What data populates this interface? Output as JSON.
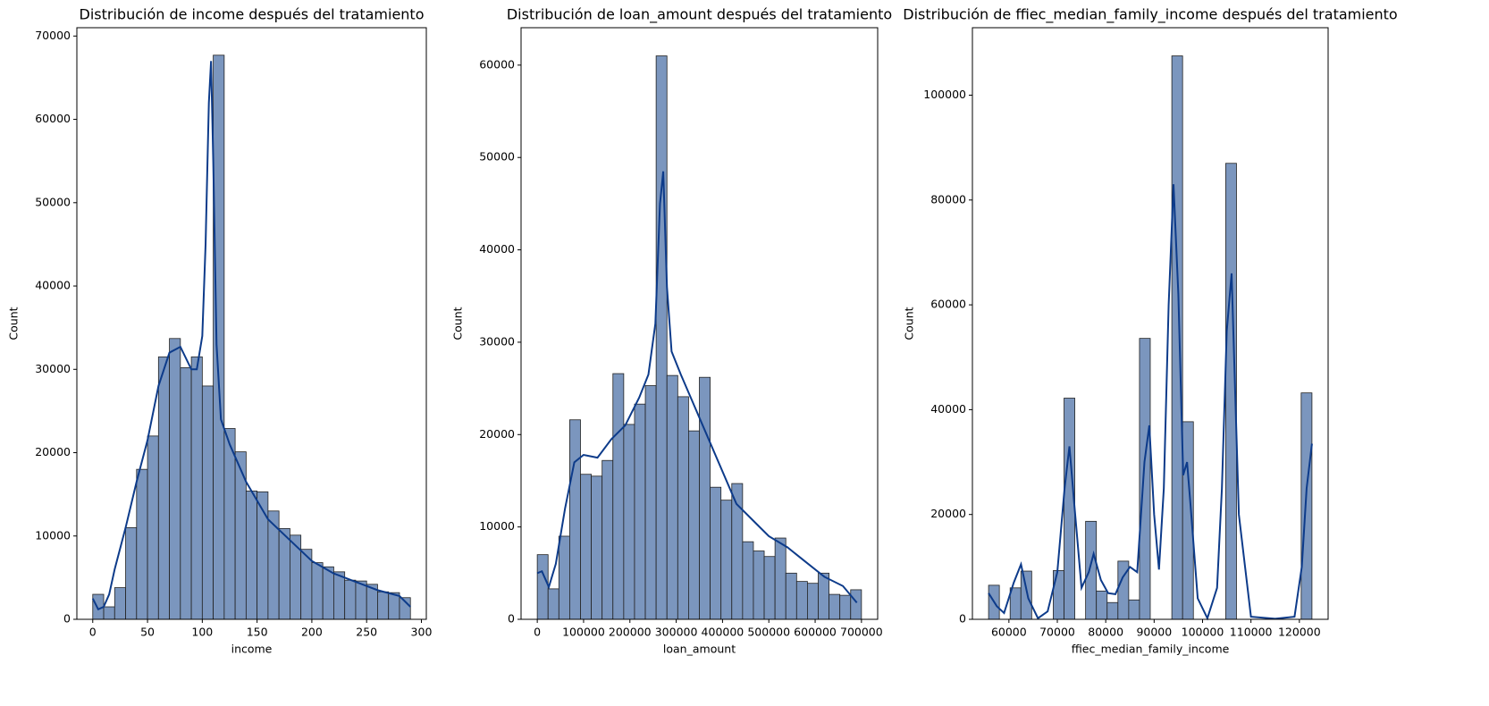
{
  "chart_data": [
    {
      "type": "histogram",
      "title": "Distribución de income después del tratamiento",
      "xlabel": "income",
      "ylabel": "Count",
      "bins": [
        0,
        10,
        20,
        30,
        40,
        50,
        60,
        70,
        80,
        90,
        100,
        110,
        120,
        130,
        140,
        150,
        160,
        170,
        180,
        190,
        200,
        210,
        220,
        230,
        240,
        250,
        260,
        270,
        280,
        290
      ],
      "values": [
        3000,
        1500,
        3800,
        11000,
        18000,
        22000,
        31500,
        33700,
        30200,
        31500,
        28000,
        67700,
        22900,
        20100,
        15400,
        15300,
        13000,
        10900,
        10100,
        8400,
        6800,
        6300,
        5700,
        4700,
        4600,
        4200,
        3300,
        3200,
        2600
      ],
      "color": "#7b96be",
      "edgecolor": "#222222",
      "xlim": [
        -14.5,
        304.5
      ],
      "xticks": [
        0,
        50,
        100,
        150,
        200,
        250,
        300
      ],
      "ylim": [
        0,
        71000
      ],
      "yticks": [
        0,
        10000,
        20000,
        30000,
        40000,
        50000,
        60000,
        70000
      ],
      "kde": {
        "color": "#0d3b8a",
        "x": [
          0,
          5,
          10,
          15,
          20,
          30,
          40,
          50,
          60,
          70,
          80,
          90,
          95,
          100,
          103,
          106,
          108,
          110,
          113,
          117,
          125,
          140,
          160,
          180,
          200,
          220,
          240,
          260,
          280,
          290
        ],
        "y": [
          2500,
          1200,
          1500,
          3000,
          6000,
          11000,
          16500,
          21500,
          28000,
          32000,
          32700,
          30000,
          30000,
          34000,
          45000,
          62000,
          67000,
          55000,
          33000,
          24000,
          21000,
          16500,
          12000,
          9500,
          7000,
          5500,
          4500,
          3500,
          2800,
          1500
        ]
      }
    },
    {
      "type": "histogram",
      "title": "Distribución de loan_amount después del tratamiento",
      "xlabel": "loan_amount",
      "ylabel": "Count",
      "bins": [
        0,
        23333,
        46667,
        70000,
        93333,
        116667,
        140000,
        163333,
        186667,
        210000,
        233333,
        256667,
        280000,
        303333,
        326667,
        350000,
        373333,
        396667,
        420000,
        443333,
        466667,
        490000,
        513333,
        536667,
        560000,
        583333,
        606667,
        630000,
        653333,
        676667,
        700000
      ],
      "values": [
        7000,
        3300,
        9000,
        21600,
        15700,
        15500,
        17200,
        26600,
        21100,
        23300,
        25300,
        61000,
        26400,
        24100,
        20400,
        26200,
        14300,
        12900,
        14700,
        8400,
        7400,
        6800,
        8800,
        5000,
        4100,
        3900,
        5000,
        2700,
        2600,
        3200
      ],
      "color": "#7b96be",
      "edgecolor": "#222222",
      "xlim": [
        -35000,
        735000
      ],
      "xticks": [
        0,
        100000,
        200000,
        300000,
        400000,
        500000,
        600000,
        700000
      ],
      "ylim": [
        0,
        64050
      ],
      "yticks": [
        0,
        10000,
        20000,
        30000,
        40000,
        50000,
        60000
      ],
      "kde": {
        "color": "#0d3b8a",
        "x": [
          0,
          10000,
          25000,
          40000,
          60000,
          80000,
          100000,
          130000,
          160000,
          190000,
          220000,
          240000,
          255000,
          265000,
          272000,
          280000,
          290000,
          310000,
          340000,
          370000,
          400000,
          430000,
          470000,
          500000,
          540000,
          580000,
          620000,
          660000,
          690000
        ],
        "y": [
          5000,
          5200,
          3500,
          6000,
          12000,
          17000,
          17800,
          17500,
          19500,
          21000,
          24000,
          26500,
          32000,
          45000,
          48500,
          36000,
          29000,
          26500,
          23000,
          19500,
          16000,
          12500,
          10500,
          9000,
          7800,
          6200,
          4600,
          3600,
          1800
        ]
      }
    },
    {
      "type": "histogram",
      "title": "Distribución de ffiec_median_family_income después del tratamiento",
      "xlabel": "ffiec_median_family_income",
      "ylabel": "Count",
      "bins": [
        55800,
        58027,
        60253,
        62480,
        64707,
        66933,
        69160,
        71387,
        73613,
        75840,
        78067,
        80293,
        82520,
        84747,
        86973,
        89200,
        91427,
        93653,
        95880,
        98107,
        100333,
        102560,
        104787,
        107013,
        109240,
        111467,
        113693,
        115920,
        118147,
        120373,
        122600
      ],
      "values": [
        6500,
        0,
        6000,
        9200,
        0,
        0,
        9300,
        42200,
        0,
        18700,
        5400,
        3200,
        11100,
        3700,
        53600,
        0,
        0,
        107500,
        37700,
        0,
        0,
        0,
        87000,
        0,
        0,
        0,
        0,
        0,
        0,
        43200
      ],
      "color": "#7b96be",
      "edgecolor": "#222222",
      "xlim": [
        52460,
        125940
      ],
      "xticks": [
        60000,
        70000,
        80000,
        90000,
        100000,
        110000,
        120000
      ],
      "ylim": [
        0,
        112875
      ],
      "yticks": [
        0,
        20000,
        40000,
        60000,
        80000,
        100000
      ],
      "kde": {
        "color": "#0d3b8a",
        "x": [
          55800,
          57500,
          59000,
          61000,
          62500,
          64000,
          66000,
          68000,
          70000,
          71500,
          72500,
          73500,
          75000,
          76500,
          77500,
          79000,
          80500,
          82000,
          83500,
          85000,
          86500,
          88000,
          89000,
          90000,
          91000,
          92000,
          93000,
          94000,
          95000,
          96000,
          96800,
          97500,
          99000,
          101000,
          103000,
          104000,
          105000,
          106000,
          107500,
          110000,
          115000,
          119000,
          120500,
          121500,
          122600
        ],
        "y": [
          5000,
          2500,
          1200,
          7000,
          10500,
          4000,
          200,
          1500,
          9000,
          25000,
          33000,
          22000,
          6000,
          9000,
          12500,
          7500,
          5000,
          4800,
          8000,
          10000,
          9000,
          30000,
          37000,
          20000,
          9500,
          25000,
          60000,
          83000,
          62000,
          27500,
          30000,
          22000,
          4000,
          200,
          6000,
          25000,
          55000,
          66000,
          20000,
          500,
          100,
          500,
          10000,
          25000,
          33500
        ]
      }
    }
  ]
}
